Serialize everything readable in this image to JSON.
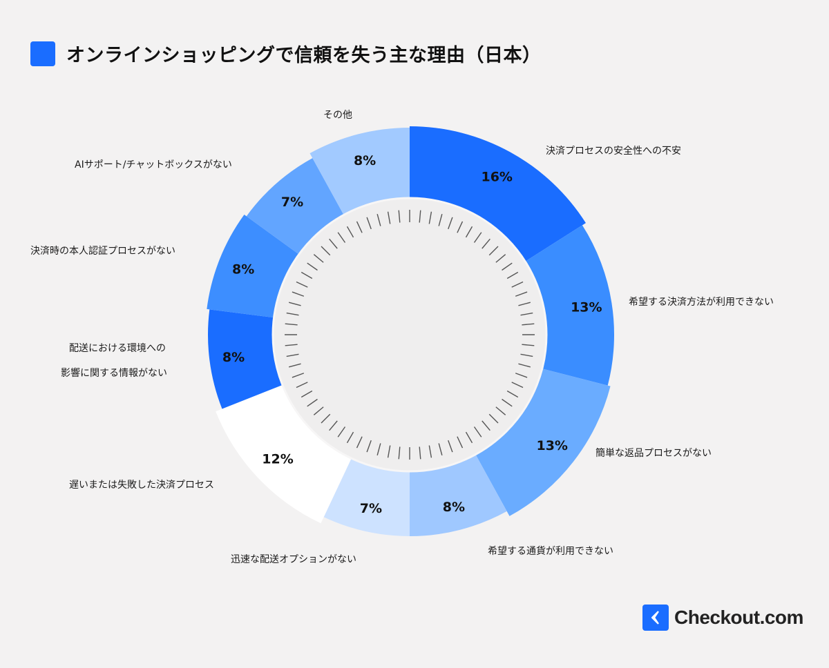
{
  "chart_data": {
    "type": "pie",
    "variant": "donut",
    "title": "オンラインショッピングで信頼を失う主な理由（日本）",
    "start": "top, clockwise",
    "slices": [
      {
        "label": "決済プロセスの安全性への不安",
        "value": 16,
        "value_label": "16%",
        "color": "#1a6dff"
      },
      {
        "label": "希望する決済方法が利用できない",
        "value": 13,
        "value_label": "13%",
        "color": "#3a8dff"
      },
      {
        "label": "簡単な返品プロセスがない",
        "value": 13,
        "value_label": "13%",
        "color": "#6aacff"
      },
      {
        "label": "希望する通貨が利用できない",
        "value": 8,
        "value_label": "8%",
        "color": "#9fc8ff"
      },
      {
        "label": "迅速な配送オプションがない",
        "value": 7,
        "value_label": "7%",
        "color": "#cde2ff"
      },
      {
        "label": "遅いまたは失敗した決済プロセス",
        "value": 12,
        "value_label": "12%",
        "color": "#ffffff"
      },
      {
        "label": [
          "配送における環境への",
          "影響に関する情報がない"
        ],
        "value": 8,
        "value_label": "8%",
        "color": "#1a6dff"
      },
      {
        "label": "決済時の本人認証プロセスがない",
        "value": 8,
        "value_label": "8%",
        "color": "#3d8eff"
      },
      {
        "label": "AIサポート/チャットボックスがない",
        "value": 7,
        "value_label": "7%",
        "color": "#62a5ff"
      },
      {
        "label": "その他",
        "value": 8,
        "value_label": "8%",
        "color": "#a2caff"
      }
    ]
  },
  "brand": {
    "name": "Checkout.com",
    "color": "#1a6dff"
  }
}
